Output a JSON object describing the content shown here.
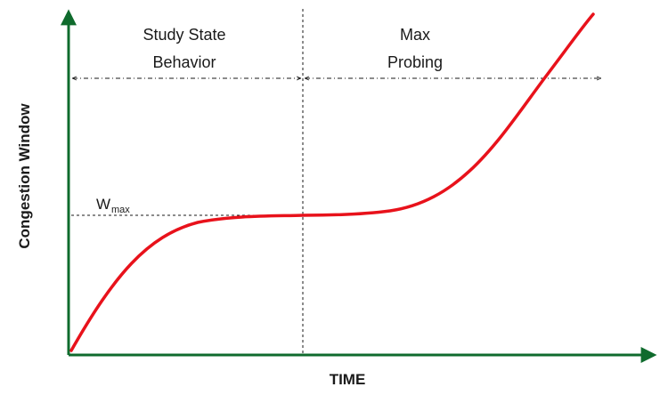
{
  "diagram": {
    "y_axis_label": "Congestion Window",
    "x_axis_label": "TIME",
    "regions": [
      {
        "line1": "Study State",
        "line2": "Behavior"
      },
      {
        "line1": "Max",
        "line2": "Probing"
      }
    ],
    "wmax": {
      "main": "W",
      "sub": "max"
    },
    "colors": {
      "axis": "#0f6b2d",
      "curve": "#e8121b",
      "guide": "#1a1a1a"
    }
  }
}
